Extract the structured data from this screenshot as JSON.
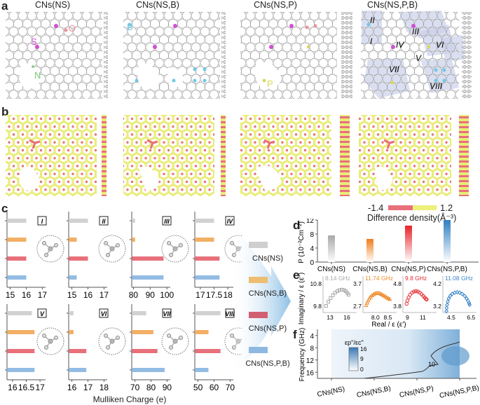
{
  "figure": {
    "panel_labels": [
      "a",
      "b",
      "c",
      "d",
      "e",
      "f"
    ],
    "panel_a": {
      "titles": [
        "CNs(NS)",
        "CNs(NS,B)",
        "CNs(NS,P)",
        "CNs(NS,P,B)"
      ],
      "atom_labels": {
        "S": "S",
        "O": "O",
        "N": "N",
        "B": "B",
        "P": "P"
      },
      "region_labels": [
        "I",
        "II",
        "III",
        "IV",
        "V",
        "VI",
        "VII",
        "VIII"
      ],
      "colors": {
        "carbon": "#d8d8d8",
        "S": "#d24fd6",
        "O": "#e8959b",
        "N": "#77c872",
        "B": "#6fc9e6",
        "P": "#d8d85a",
        "region": "#c9d0ea"
      }
    },
    "panel_b": {
      "colorbar_min": "-1.4",
      "colorbar_max": "1.2",
      "colorbar_label": "Difference density(Å⁻³)",
      "colors": {
        "negative": "#e8707a",
        "positive": "#eef07a"
      }
    },
    "legend": {
      "items": [
        {
          "label": "CNs(NS)",
          "color": "#cfcfcf"
        },
        {
          "label": "CNs(NS,B)",
          "color": "#edbd71"
        },
        {
          "label": "CNs(NS,P)",
          "color": "#d25e72"
        },
        {
          "label": "CNs(NS,P,B)",
          "color": "#8db9e0"
        }
      ]
    },
    "panel_c_xlabel": "Mulliken Charge (e)",
    "panel_e_ylabel": "Imaginary / ε (ε'')",
    "panel_e_xlabel": "Real / ε (ε')"
  },
  "chart_data": [
    {
      "type": "bar",
      "panel": "c",
      "orientation": "horizontal",
      "xlabel": "Mulliken Charge (e)",
      "series_names": [
        "CNs(NS)",
        "CNs(NS,B)",
        "CNs(NS,P)",
        "CNs(NS,P,B)"
      ],
      "series_colors": [
        "#c9c9c9",
        "#f0a14a",
        "#e45763",
        "#7fb0de"
      ],
      "subplots": [
        {
          "region": "I",
          "xlim": [
            14.8,
            17.2
          ],
          "ticks": [
            "15",
            "16",
            "17"
          ],
          "tickvals": [
            15,
            16,
            17
          ],
          "values": [
            16.0,
            16.0,
            16.0,
            16.0
          ]
        },
        {
          "region": "II",
          "xlim": [
            14.8,
            17.2
          ],
          "ticks": [
            "15",
            "16",
            "17"
          ],
          "tickvals": [
            15,
            16,
            17
          ],
          "values": [
            16.0,
            15.3,
            16.0,
            15.3
          ]
        },
        {
          "region": "III",
          "xlim": [
            79,
            102
          ],
          "ticks": [
            "80",
            "90",
            "100"
          ],
          "tickvals": [
            80,
            90,
            100
          ],
          "values": [
            81,
            81,
            98,
            98
          ]
        },
        {
          "region": "IV",
          "xlim": [
            16.8,
            18.2
          ],
          "ticks": [
            "17",
            "17.5",
            "18"
          ],
          "tickvals": [
            17,
            17.5,
            18
          ],
          "values": [
            17.5,
            17.5,
            17.7,
            17.7
          ]
        },
        {
          "region": "V",
          "xlim": [
            15.8,
            17.2
          ],
          "ticks": [
            "16",
            "16.5",
            "17"
          ],
          "tickvals": [
            16,
            16.5,
            17
          ],
          "values": [
            16.7,
            16.8,
            16.8,
            16.8
          ]
        },
        {
          "region": "VI",
          "xlim": [
            15.8,
            18.2
          ],
          "ticks": [
            "16",
            "17",
            "18"
          ],
          "tickvals": [
            16,
            17,
            18
          ],
          "values": [
            16.1,
            16.1,
            16.9,
            16.9
          ]
        },
        {
          "region": "VII",
          "xlim": [
            68,
            92
          ],
          "ticks": [
            "70",
            "80",
            "90"
          ],
          "tickvals": [
            70,
            80,
            90
          ],
          "values": [
            77,
            81.5,
            84,
            88.5
          ]
        },
        {
          "region": "VIII",
          "xlim": [
            48,
            72
          ],
          "ticks": [
            "50",
            "60",
            "70"
          ],
          "tickvals": [
            50,
            60,
            70
          ],
          "values": [
            64,
            56.5,
            64,
            56.5
          ]
        }
      ]
    },
    {
      "type": "bar",
      "panel": "d",
      "title": "",
      "categories": [
        "CNs(NS)",
        "CNs(NS,B)",
        "CNs(NS,P)",
        "CNs(NS,P,B)"
      ],
      "values": [
        7.6,
        6.6,
        10.4,
        12.0
      ],
      "colors": [
        "#a8a8a8",
        "#ee7d1e",
        "#e8232b",
        "#2f7fc1"
      ],
      "ylabel": "P (10⁻²Cm⁻²)",
      "ylim": [
        0,
        12
      ],
      "yticks": [
        0,
        4,
        8,
        12
      ]
    },
    {
      "type": "scatter",
      "panel": "e",
      "ylabel": "Imaginary / ε (ε'')",
      "xlabel": "Real / ε (ε')",
      "subplots": [
        {
          "name": "CNs(NS)",
          "annotation": "8.14 GHz",
          "color": "#a9a9a9",
          "marker": "square",
          "yticks": [
            "9.8",
            "10.8"
          ],
          "yrange": [
            9.8,
            10.8
          ],
          "xticks": [
            "13",
            "16"
          ],
          "xrange": [
            12,
            17.5
          ],
          "points": [
            [
              12.3,
              9.85
            ],
            [
              12.7,
              10.05
            ],
            [
              13.1,
              10.22
            ],
            [
              13.5,
              10.36
            ],
            [
              13.9,
              10.47
            ],
            [
              14.3,
              10.55
            ],
            [
              14.7,
              10.6
            ],
            [
              15.1,
              10.62
            ],
            [
              15.5,
              10.6
            ],
            [
              15.8,
              10.55
            ],
            [
              16.1,
              10.46
            ],
            [
              16.3,
              10.38
            ]
          ]
        },
        {
          "name": "CNs(NS,B)",
          "annotation": "11.74 GHz",
          "color": "#ee8a2a",
          "marker": "triangle",
          "yticks": [
            "2.7",
            "3.7"
          ],
          "yrange": [
            2.7,
            3.7
          ],
          "xticks": [
            "8.0",
            "8.5"
          ],
          "xrange": [
            7.55,
            8.8
          ],
          "points": [
            [
              7.62,
              2.78
            ],
            [
              7.66,
              2.9
            ],
            [
              7.7,
              3.0
            ],
            [
              7.75,
              3.1
            ],
            [
              7.8,
              3.18
            ],
            [
              7.86,
              3.25
            ],
            [
              7.92,
              3.3
            ],
            [
              7.98,
              3.34
            ],
            [
              8.04,
              3.36
            ],
            [
              8.1,
              3.36
            ],
            [
              8.16,
              3.35
            ],
            [
              8.22,
              3.32
            ],
            [
              8.28,
              3.28
            ],
            [
              8.34,
              3.24
            ],
            [
              8.4,
              3.2
            ],
            [
              8.46,
              3.15
            ],
            [
              8.52,
              3.11
            ],
            [
              8.58,
              3.07
            ]
          ]
        },
        {
          "name": "CNs(NS,P)",
          "annotation": "9.8 GHz",
          "color": "#e2262e",
          "marker": "circle",
          "yticks": [
            "3.8",
            "4.8"
          ],
          "yrange": [
            3.8,
            4.8
          ],
          "xticks": [
            "9",
            "11"
          ],
          "xrange": [
            8.6,
            12.6
          ],
          "points": [
            [
              8.9,
              3.95
            ],
            [
              9.0,
              4.1
            ],
            [
              9.15,
              4.25
            ],
            [
              9.35,
              4.38
            ],
            [
              9.6,
              4.48
            ],
            [
              9.85,
              4.53
            ],
            [
              10.1,
              4.55
            ],
            [
              10.35,
              4.53
            ],
            [
              10.6,
              4.48
            ],
            [
              10.85,
              4.4
            ],
            [
              11.05,
              4.32
            ],
            [
              11.25,
              4.24
            ],
            [
              11.4,
              4.18
            ],
            [
              11.5,
              4.15
            ]
          ]
        },
        {
          "name": "CNs(NS,P,B)",
          "annotation": "11.08 GHz",
          "color": "#3a84c8",
          "marker": "diamond",
          "yticks": [
            "3.2",
            "4.2"
          ],
          "yrange": [
            3.2,
            4.2
          ],
          "xticks": [
            "4.5",
            "6.5"
          ],
          "xrange": [
            3.8,
            6.9
          ],
          "points": [
            [
              4.02,
              3.0
            ],
            [
              4.04,
              3.15
            ],
            [
              4.08,
              3.3
            ],
            [
              4.15,
              3.45
            ],
            [
              4.25,
              3.6
            ],
            [
              4.4,
              3.72
            ],
            [
              4.6,
              3.82
            ],
            [
              4.85,
              3.88
            ],
            [
              5.1,
              3.9
            ],
            [
              5.35,
              3.88
            ],
            [
              5.6,
              3.82
            ],
            [
              5.85,
              3.72
            ],
            [
              6.05,
              3.6
            ],
            [
              6.2,
              3.48
            ],
            [
              6.3,
              3.38
            ],
            [
              6.35,
              3.3
            ]
          ]
        }
      ]
    },
    {
      "type": "heatmap",
      "panel": "f",
      "ylabel": "Frequency (GHz)",
      "yticks": [
        4,
        8,
        12,
        16
      ],
      "ylim": [
        2,
        18
      ],
      "categories": [
        "CNs(NS)",
        "CNs(NS,B)",
        "CNs(NS,P)",
        "CNs(NS,P,B)"
      ],
      "colorbar_title": "εp''/εc''",
      "colorbar_ticks": [
        "0",
        "9",
        "16"
      ],
      "colorbar_range": [
        0,
        16
      ],
      "contour_label": "10",
      "contour_level": 10
    }
  ]
}
